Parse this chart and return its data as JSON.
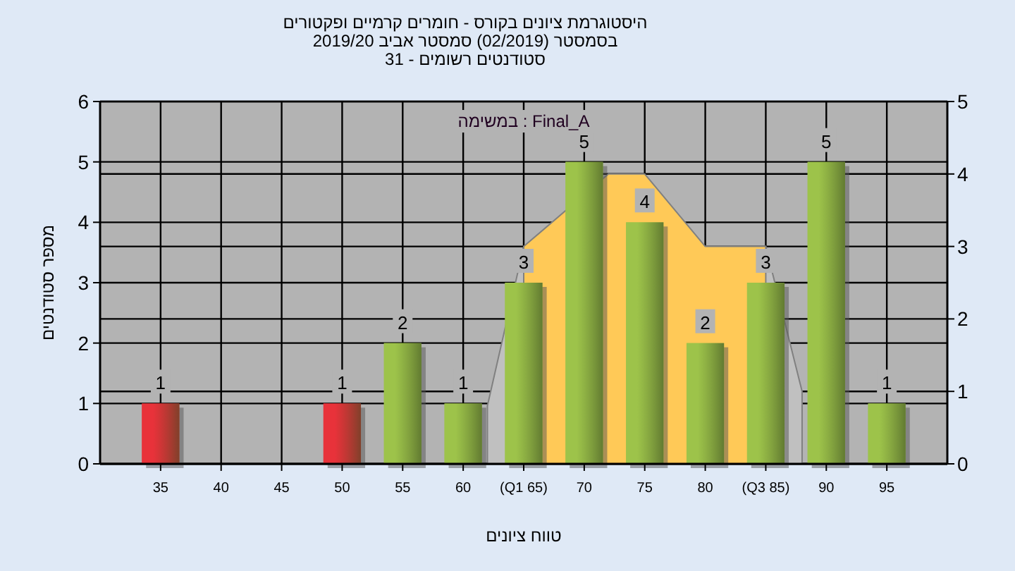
{
  "chart_data": {
    "type": "bar",
    "title": "היסטוגרמת ציונים בקורס - חומרים קרמיים ופקטורים",
    "subtitle": "בסמסטר  (02/2019)  סמסטר אביב 2019/20\nסטודנטים רשומים - 31",
    "xlabel": "טווח ציונים",
    "ylabel": "מספר סטודנטים",
    "annotations": [
      "במשימה : Final_A"
    ],
    "xlim": [
      30,
      100
    ],
    "xticks": [
      35,
      40,
      45,
      50,
      55,
      60,
      {
        "value": 65,
        "label": "(Q1 65)"
      },
      70,
      75,
      80,
      {
        "value": 85,
        "label": "(Q3 85)"
      },
      90,
      95
    ],
    "ylim": [
      0,
      6
    ],
    "yticks": [
      0,
      1,
      2,
      3,
      4,
      5,
      6
    ],
    "y2lim": [
      0,
      5
    ],
    "y2ticks": [
      0,
      1,
      2,
      3,
      4,
      5
    ],
    "grid": true,
    "series": [
      {
        "type": "area",
        "axis": "y2",
        "x": [
          62,
          65,
          85,
          88
        ],
        "values": [
          0.8,
          3,
          3,
          1
        ],
        "color": "#c0c0c0"
      },
      {
        "type": "area",
        "axis": "y2",
        "x": [
          65,
          72,
          75,
          80,
          85
        ],
        "values": [
          3,
          4,
          4,
          3,
          3
        ],
        "color": "#ffc957"
      },
      {
        "x": [
          35,
          40,
          45,
          50,
          55,
          60,
          65,
          70,
          75,
          80,
          85,
          90,
          95
        ],
        "values": [
          1,
          0,
          0,
          1,
          2,
          1,
          3,
          5,
          4,
          2,
          3,
          5,
          1
        ],
        "colors": [
          "#e8323a",
          "#9dc34a",
          "#9dc34a",
          "#e8323a",
          "#9dc34a",
          "#9dc34a",
          "#9dc34a",
          "#9dc34a",
          "#9dc34a",
          "#9dc34a",
          "#9dc34a",
          "#9dc34a",
          "#9dc34a"
        ],
        "value_labels": [
          "1",
          null,
          null,
          "1",
          "2",
          "1",
          "3",
          "5",
          "4",
          "2",
          "3",
          "5",
          "1"
        ]
      }
    ]
  }
}
